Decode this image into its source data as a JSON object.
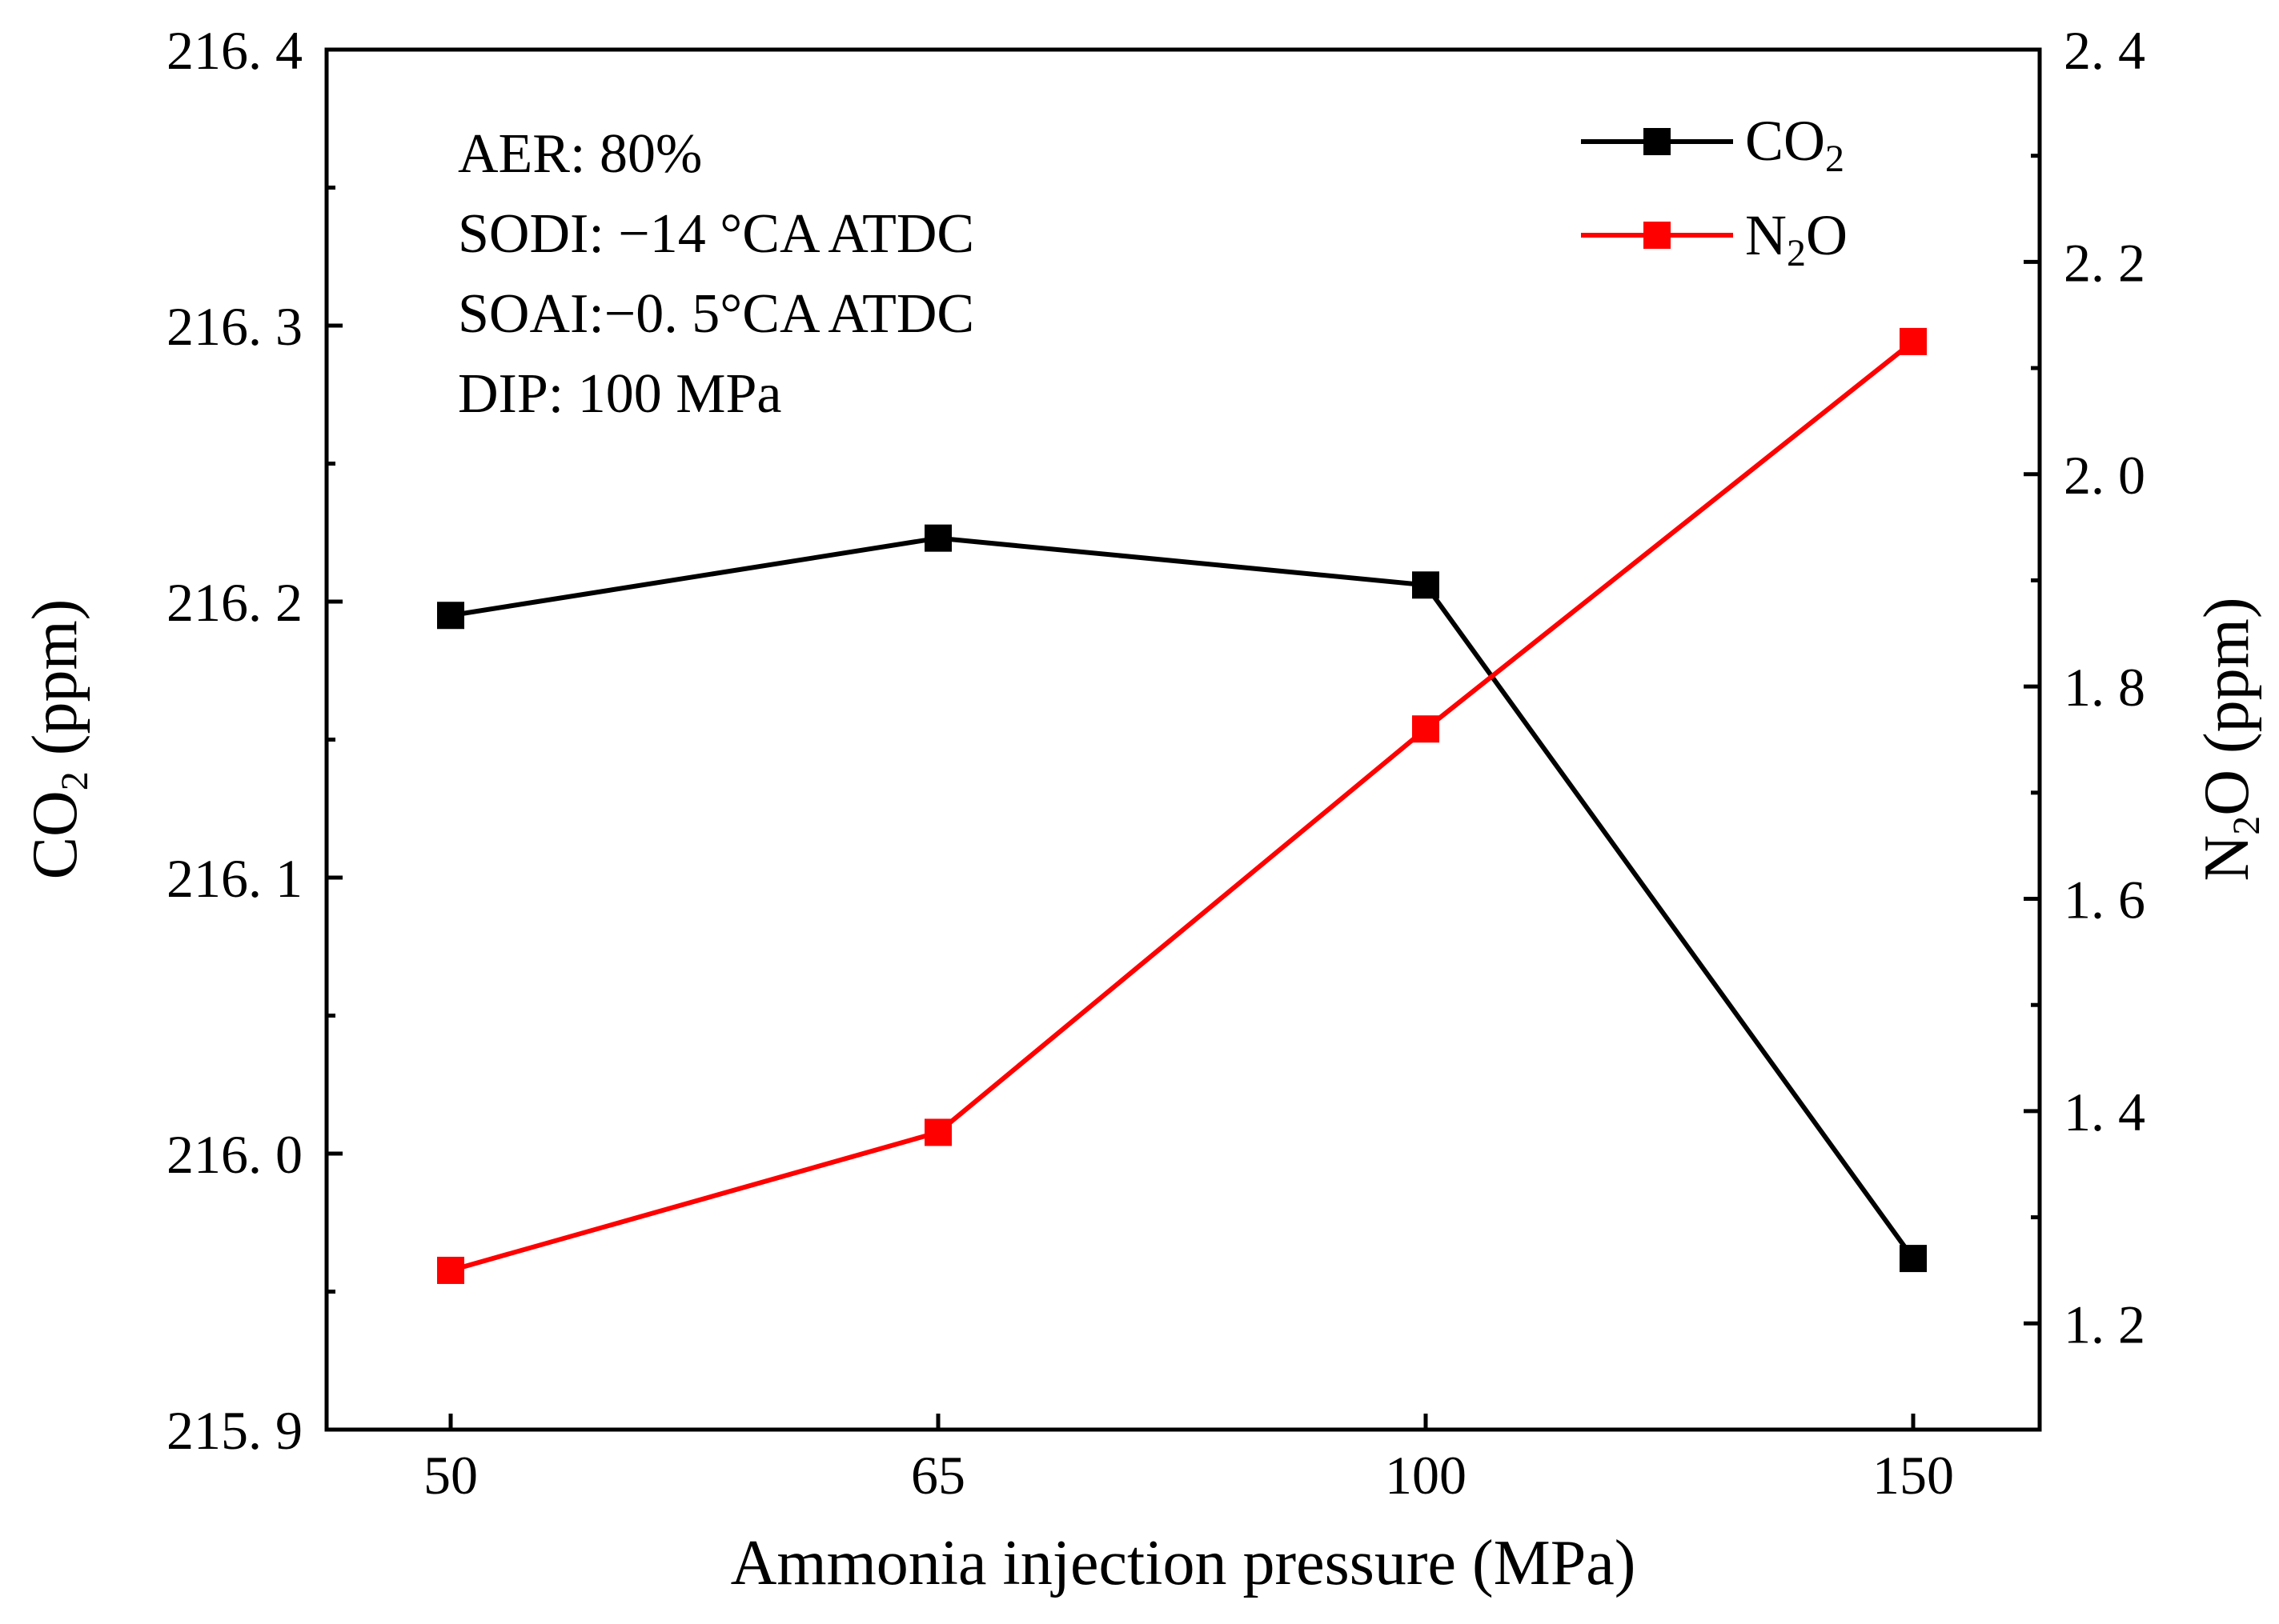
{
  "chart_data": {
    "type": "line",
    "categories": [
      "50",
      "65",
      "100",
      "150"
    ],
    "xlabel": "Ammonia injection pressure (MPa)",
    "left_axis": {
      "label_main": "CO",
      "label_sub": "2",
      "label_tail": " (ppm)",
      "ylim": [
        215.9,
        216.4
      ],
      "ticks": [
        215.9,
        216.0,
        216.1,
        216.2,
        216.3,
        216.4
      ],
      "tick_labels": [
        "215. 9",
        "216. 0",
        "216. 1",
        "216. 2",
        "216. 3",
        "216. 4"
      ]
    },
    "right_axis": {
      "label_main": "N",
      "label_sub": "2",
      "label_tail": "O (ppm)",
      "ylim": [
        1.1,
        2.4
      ],
      "ticks": [
        1.2,
        1.4,
        1.6,
        1.8,
        2.0,
        2.2,
        2.4
      ],
      "tick_labels": [
        "1. 2",
        "1. 4",
        "1. 6",
        "1. 8",
        "2. 0",
        "2. 2",
        "2. 4"
      ]
    },
    "series": [
      {
        "name": "CO2",
        "legend_main": "CO",
        "legend_sub": "2",
        "legend_tail": "",
        "axis": "left",
        "color": "#000000",
        "values": [
          216.195,
          216.223,
          216.206,
          215.962
        ]
      },
      {
        "name": "N2O",
        "legend_main": "N",
        "legend_sub": "2",
        "legend_tail": "O",
        "axis": "right",
        "color": "#ff0000",
        "values": [
          1.25,
          1.38,
          1.76,
          2.125
        ]
      }
    ],
    "annotations": [
      "AER: 80%",
      "SODI: −14 °CA ATDC",
      "SOAI:−0. 5°CA ATDC",
      "DIP: 100 MPa"
    ],
    "legend_position": "top-right"
  }
}
